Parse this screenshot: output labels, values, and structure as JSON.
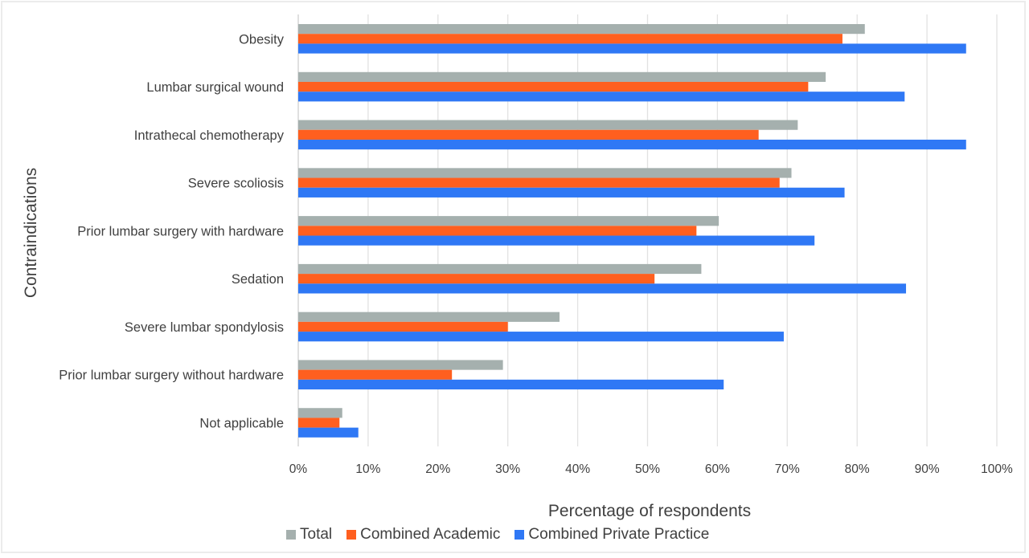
{
  "chart_data": {
    "type": "bar",
    "orientation": "horizontal",
    "title": "",
    "xlabel": "Percentage of respondents",
    "ylabel": "Contraindications",
    "xlim": [
      0,
      100
    ],
    "x_ticks": [
      "0%",
      "10%",
      "20%",
      "30%",
      "40%",
      "50%",
      "60%",
      "70%",
      "80%",
      "90%",
      "100%"
    ],
    "grid": true,
    "legend_position": "bottom",
    "categories": [
      "Obesity",
      "Lumbar surgical wound",
      "Intrathecal chemotherapy",
      "Severe scoliosis",
      "Prior lumbar surgery with hardware",
      "Sedation",
      "Severe lumbar spondylosis",
      "Prior lumbar surgery without hardware",
      "Not applicable"
    ],
    "series": [
      {
        "name": "Total",
        "color": "#a5b0ae",
        "values": [
          81.1,
          75.5,
          71.5,
          70.6,
          60.2,
          57.7,
          37.4,
          29.3,
          6.3
        ]
      },
      {
        "name": "Combined Academic",
        "color": "#ff5f1f",
        "values": [
          77.9,
          73.0,
          65.9,
          68.9,
          57.0,
          51.0,
          30.0,
          22.0,
          5.9
        ]
      },
      {
        "name": "Combined Private Practice",
        "color": "#2f78f5",
        "values": [
          95.6,
          86.8,
          95.6,
          78.2,
          73.9,
          87.0,
          69.5,
          60.9,
          8.6
        ]
      }
    ]
  },
  "legend": {
    "items": [
      {
        "label": "Total",
        "color": "#a5b0ae"
      },
      {
        "label": "Combined Academic",
        "color": "#ff5f1f"
      },
      {
        "label": "Combined Private Practice",
        "color": "#2f78f5"
      }
    ]
  }
}
